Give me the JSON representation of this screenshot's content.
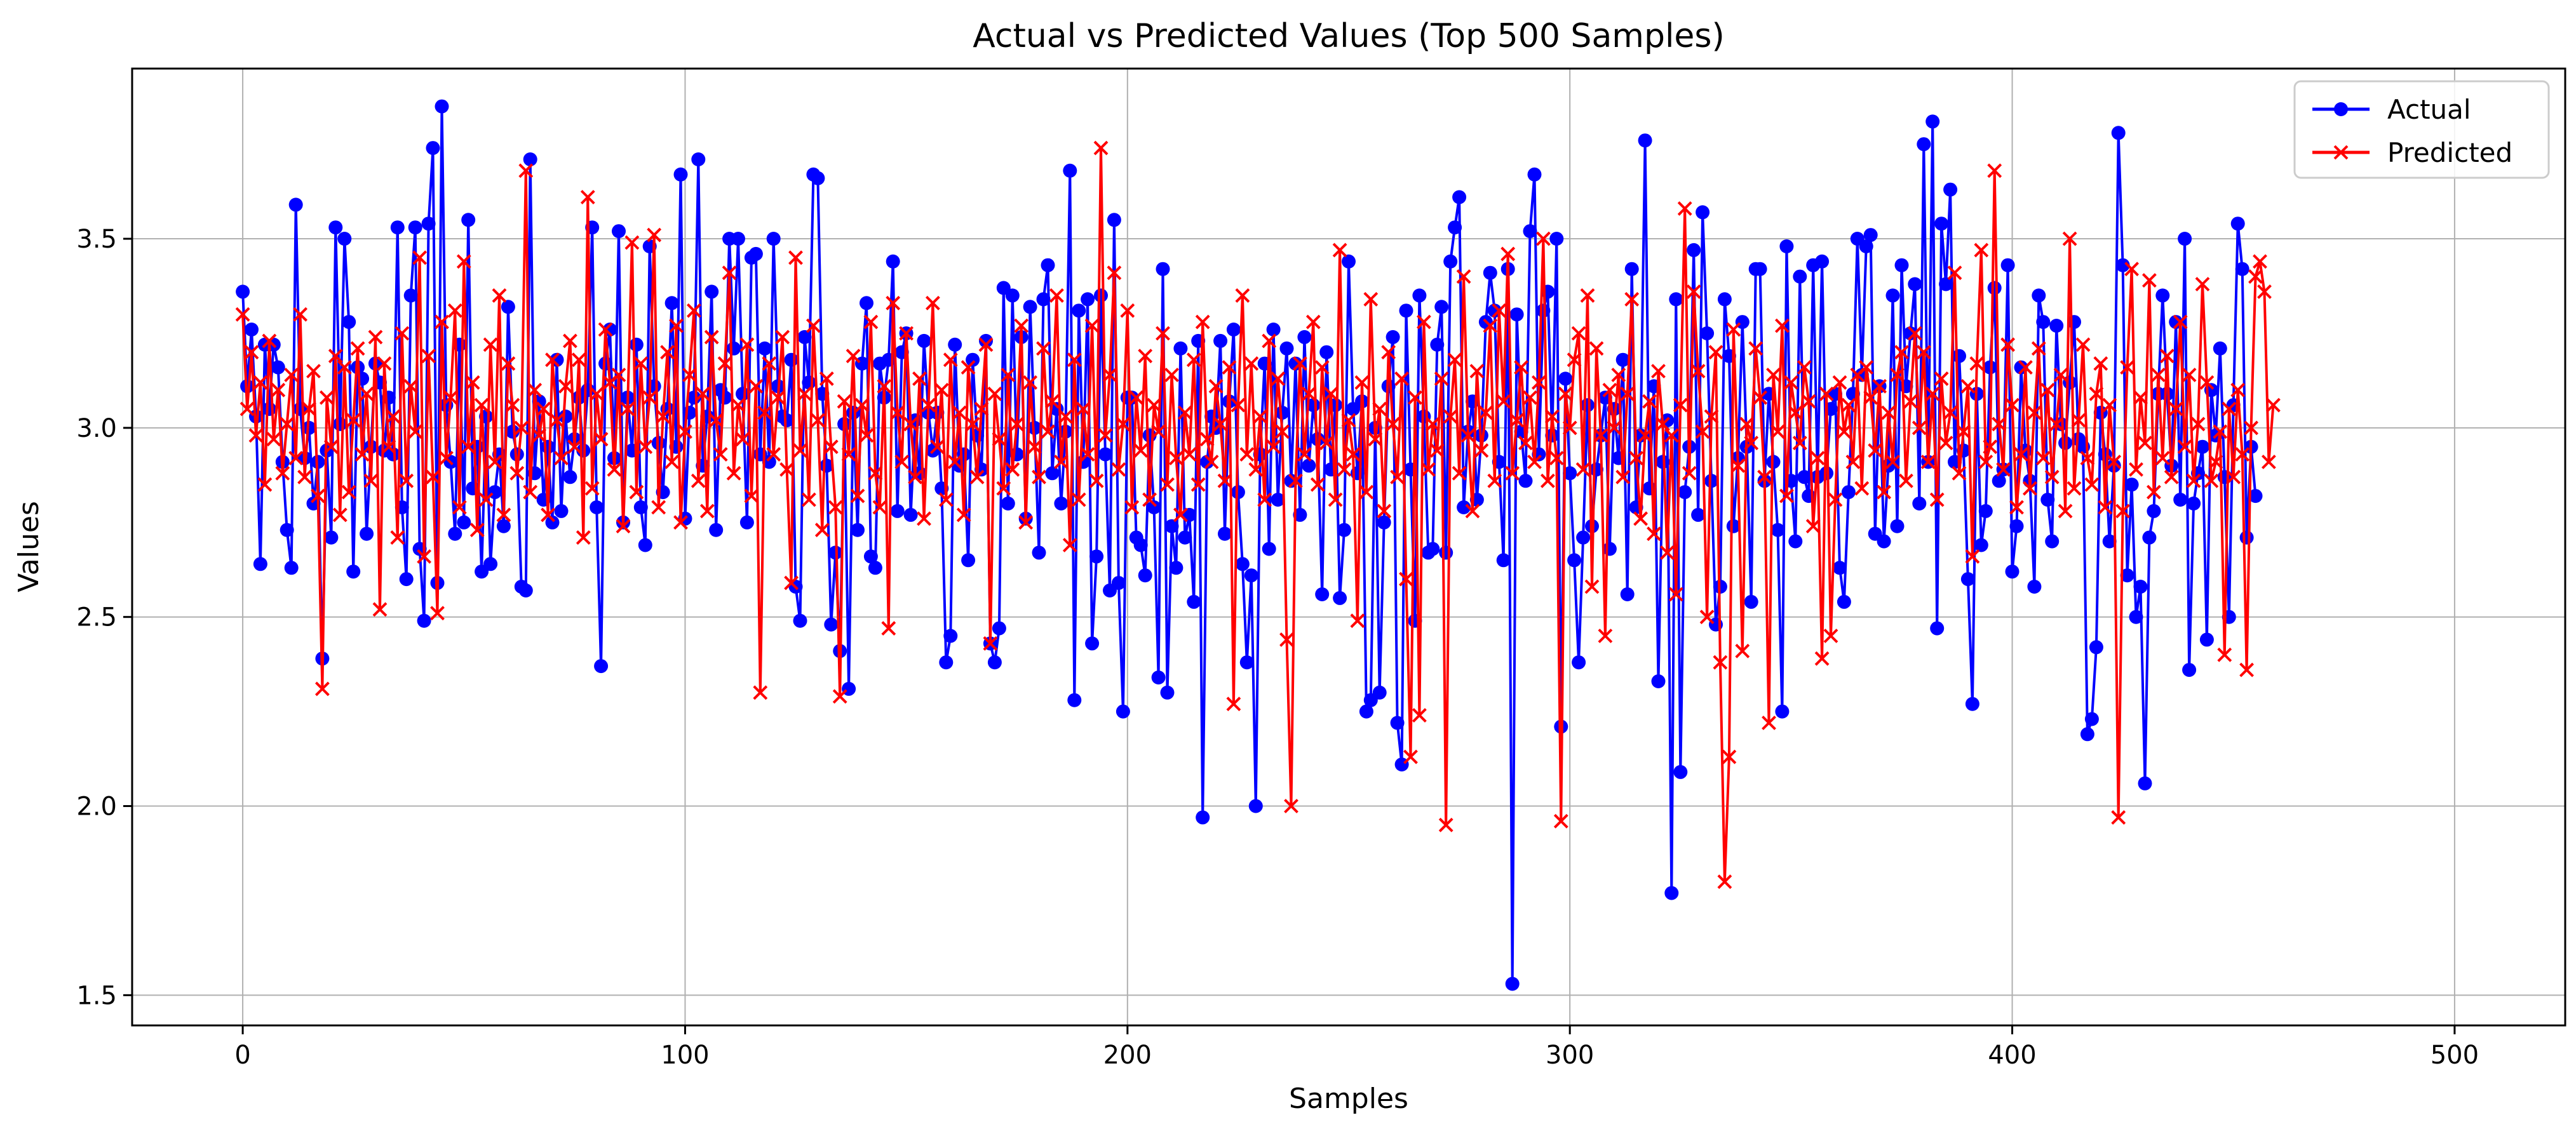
{
  "chart_data": {
    "type": "line",
    "title": "Actual vs Predicted Values (Top 500 Samples)",
    "xlabel": "Samples",
    "ylabel": "Values",
    "xlim": [
      -25,
      525
    ],
    "ylim": [
      1.42,
      3.95
    ],
    "xticks": [
      0,
      100,
      200,
      300,
      400,
      500
    ],
    "yticks": [
      1.5,
      2.0,
      2.5,
      3.0,
      3.5
    ],
    "xtick_labels": [
      "0",
      "100",
      "200",
      "300",
      "400",
      "500"
    ],
    "ytick_labels": [
      "1.5",
      "2.0",
      "2.5",
      "3.0",
      "3.5"
    ],
    "grid": true,
    "legend_position": "top-right",
    "series": [
      {
        "name": "Actual",
        "color": "#0000ff",
        "marker": "circle",
        "values": [
          3.36,
          3.11,
          3.26,
          3.03,
          2.64,
          3.22,
          3.05,
          3.22,
          3.16,
          2.91,
          2.73,
          2.63,
          3.59,
          3.05,
          2.92,
          3.0,
          2.8,
          2.91,
          2.39,
          2.94,
          2.71,
          3.53,
          3.01,
          3.5,
          3.28,
          2.62,
          3.16,
          3.13,
          2.72,
          2.95,
          3.17,
          3.12,
          2.94,
          3.08,
          2.93,
          3.53,
          2.79,
          2.6,
          3.35,
          3.53,
          2.68,
          2.49,
          3.54,
          3.74,
          2.59,
          3.85,
          3.06,
          2.91,
          2.72,
          3.22,
          2.75,
          3.55,
          2.84,
          2.95,
          2.62,
          3.03,
          2.64,
          2.83,
          2.93,
          2.74,
          3.32,
          2.99,
          2.93,
          2.58,
          2.57,
          3.71,
          2.88,
          3.07,
          2.81,
          2.95,
          2.75,
          3.18,
          2.78,
          3.03,
          2.87,
          2.97,
          3.08,
          2.94,
          3.1,
          3.53,
          2.79,
          2.37,
          3.17,
          3.26,
          2.92,
          3.52,
          2.75,
          3.08,
          2.94,
          3.22,
          2.79,
          2.69,
          3.48,
          3.11,
          2.96,
          2.83,
          3.05,
          3.33,
          2.95,
          3.67,
          2.76,
          3.04,
          3.08,
          3.71,
          2.9,
          3.03,
          3.36,
          2.73,
          3.1,
          3.08,
          3.5,
          3.21,
          3.5,
          3.09,
          2.75,
          3.45,
          3.46,
          2.93,
          3.21,
          2.91,
          3.5,
          3.11,
          3.03,
          3.02,
          3.18,
          2.58,
          2.49,
          3.24,
          3.12,
          3.67,
          3.66,
          3.09,
          2.9,
          2.48,
          2.67,
          2.41,
          3.01,
          2.31,
          3.04,
          2.73,
          3.17,
          3.33,
          2.66,
          2.63,
          3.17,
          3.08,
          3.18,
          3.44,
          2.78,
          3.2,
          3.25,
          2.77,
          3.02,
          2.88,
          3.23,
          3.04,
          2.94,
          3.04,
          2.84,
          2.38,
          2.45,
          3.22,
          2.9,
          2.93,
          2.65,
          3.18,
          2.98,
          2.89,
          3.23,
          2.43,
          2.38,
          2.47,
          3.37,
          2.8,
          3.35,
          2.93,
          3.24,
          2.76,
          3.32,
          3.0,
          2.67,
          3.34,
          3.43,
          2.88,
          3.05,
          2.8,
          2.99,
          3.68,
          2.28,
          3.31,
          2.91,
          3.34,
          2.43,
          2.66,
          3.35,
          2.93,
          2.57,
          3.55,
          2.59,
          2.25,
          3.08,
          3.08,
          2.71,
          2.69,
          2.61,
          2.98,
          2.79,
          2.34,
          3.42,
          2.3,
          2.74,
          2.63,
          3.21,
          2.71,
          2.77,
          2.54,
          3.23,
          1.97,
          2.91,
          3.03,
          3.0,
          3.23,
          2.72,
          3.07,
          3.26,
          2.83,
          2.64,
          2.38,
          2.61,
          2.0,
          2.93,
          3.17,
          2.68,
          3.26,
          2.81,
          3.04,
          3.21,
          2.86,
          3.17,
          2.77,
          3.24,
          2.9,
          3.06,
          2.97,
          2.56,
          3.2,
          2.89,
          3.06,
          2.55,
          2.73,
          3.44,
          3.05,
          2.88,
          3.07,
          2.25,
          2.28,
          3.0,
          2.3,
          2.75,
          3.11,
          3.24,
          2.22,
          2.11,
          3.31,
          2.89,
          2.49,
          3.35,
          3.03,
          2.67,
          2.68,
          3.22,
          3.32,
          2.67,
          3.44,
          3.53,
          3.61,
          2.79,
          2.99,
          3.07,
          2.81,
          2.98,
          3.28,
          3.41,
          3.31,
          2.91,
          2.65,
          3.42,
          1.53,
          3.3,
          2.99,
          2.86,
          3.52,
          3.67,
          2.93,
          3.31,
          3.36,
          2.98,
          3.5,
          2.21,
          3.13,
          2.88,
          2.65,
          2.38,
          2.71,
          3.06,
          2.74,
          2.89,
          2.98,
          3.08,
          2.68,
          3.05,
          2.92,
          3.18,
          2.56,
          3.42,
          2.79,
          2.98,
          3.76,
          2.84,
          3.11,
          2.33,
          2.91,
          3.02,
          1.77,
          3.34,
          2.09,
          2.83,
          2.95,
          3.47,
          2.77,
          3.57,
          3.25,
          2.86,
          2.48,
          2.58,
          3.34,
          3.19,
          2.74,
          2.92,
          3.28,
          2.95,
          2.54,
          3.42,
          3.42,
          2.86,
          3.09,
          2.91,
          2.73,
          2.25,
          3.48,
          2.86,
          2.7,
          3.4,
          2.87,
          2.82,
          3.43,
          2.87,
          3.44,
          2.88,
          3.05,
          3.09,
          2.63,
          2.54,
          2.83,
          3.09,
          3.5,
          3.14,
          3.48,
          3.51,
          2.72,
          3.11,
          2.7,
          2.9,
          3.35,
          2.74,
          3.43,
          3.11,
          3.25,
          3.38,
          2.8,
          3.75,
          2.91,
          3.81,
          2.47,
          3.54,
          3.38,
          3.63,
          2.91,
          3.19,
          2.94,
          2.6,
          2.27,
          3.09,
          2.69,
          2.78,
          3.16,
          3.37,
          2.86,
          2.89,
          3.43,
          2.62,
          2.74,
          3.16,
          2.94,
          2.86,
          2.58,
          3.35,
          3.28,
          2.81,
          2.7,
          3.27,
          3.01,
          2.96,
          3.12,
          3.28,
          2.97,
          2.95,
          2.19,
          2.23,
          2.42,
          3.04,
          2.93,
          2.7,
          2.9,
          3.78,
          3.43,
          2.61,
          2.85,
          2.5,
          2.58,
          2.06,
          2.71,
          2.78,
          3.09,
          3.35,
          3.09,
          2.9,
          3.28,
          2.81,
          3.5,
          2.36,
          2.8,
          2.88,
          2.95,
          2.44,
          3.1,
          2.98,
          3.21,
          2.87,
          2.5,
          3.06,
          3.54,
          3.42,
          2.71,
          2.95,
          2.82
        ]
      },
      {
        "name": "Predicted",
        "color": "#ff0000",
        "marker": "x",
        "values": [
          3.3,
          3.05,
          3.2,
          2.98,
          3.12,
          2.85,
          3.23,
          2.97,
          3.1,
          2.88,
          3.01,
          3.14,
          2.92,
          3.3,
          2.87,
          3.05,
          3.15,
          2.82,
          2.31,
          3.08,
          2.95,
          3.19,
          2.77,
          3.16,
          2.83,
          3.02,
          3.21,
          2.93,
          3.09,
          2.86,
          3.24,
          2.52,
          3.17,
          2.95,
          3.03,
          2.71,
          3.25,
          2.86,
          3.11,
          2.99,
          3.45,
          2.66,
          3.19,
          2.87,
          2.51,
          3.28,
          2.92,
          3.08,
          3.31,
          2.79,
          3.44,
          2.95,
          3.12,
          2.73,
          3.06,
          2.81,
          3.22,
          2.91,
          3.35,
          2.77,
          3.17,
          3.06,
          2.88,
          3.0,
          3.68,
          2.83,
          3.1,
          2.98,
          3.05,
          2.77,
          3.18,
          3.02,
          2.92,
          3.11,
          3.23,
          2.95,
          3.18,
          2.71,
          3.61,
          2.84,
          3.09,
          2.97,
          3.26,
          3.12,
          2.89,
          3.14,
          2.74,
          3.05,
          3.49,
          2.83,
          3.17,
          2.95,
          3.08,
          3.51,
          2.79,
          3.03,
          3.2,
          2.91,
          3.27,
          2.75,
          2.99,
          3.14,
          3.31,
          2.86,
          3.09,
          2.78,
          3.24,
          3.02,
          2.93,
          3.17,
          3.41,
          2.88,
          3.06,
          2.97,
          3.22,
          2.82,
          3.11,
          2.3,
          3.04,
          3.17,
          2.93,
          3.08,
          3.24,
          2.89,
          2.59,
          3.45,
          2.94,
          3.09,
          2.81,
          3.27,
          3.02,
          2.73,
          3.13,
          2.95,
          2.79,
          2.29,
          3.07,
          2.93,
          3.19,
          2.82,
          3.06,
          2.98,
          3.28,
          2.88,
          2.79,
          3.11,
          2.47,
          3.33,
          3.04,
          2.91,
          3.25,
          3.01,
          2.87,
          3.13,
          2.76,
          3.06,
          3.33,
          2.95,
          3.1,
          2.81,
          3.18,
          2.91,
          3.04,
          2.77,
          3.16,
          3.01,
          2.87,
          3.05,
          3.22,
          2.43,
          3.09,
          2.97,
          2.84,
          3.14,
          2.89,
          3.01,
          3.27,
          2.75,
          3.12,
          2.95,
          2.87,
          3.21,
          2.99,
          3.07,
          3.35,
          2.91,
          3.03,
          2.69,
          3.18,
          2.81,
          3.05,
          2.93,
          3.27,
          2.86,
          3.74,
          2.98,
          3.14,
          3.41,
          2.89,
          3.01,
          3.31,
          2.79,
          3.08,
          2.94,
          3.19,
          2.81,
          3.06,
          2.99,
          3.25,
          2.85,
          3.14,
          2.92,
          2.77,
          3.04,
          2.93,
          3.18,
          2.85,
          3.28,
          2.97,
          2.91,
          3.11,
          3.01,
          2.86,
          3.16,
          2.27,
          3.06,
          3.35,
          2.93,
          3.17,
          2.89,
          3.03,
          2.81,
          3.23,
          2.95,
          3.13,
          2.99,
          2.44,
          2.0,
          2.86,
          3.17,
          2.93,
          3.09,
          3.28,
          2.85,
          3.16,
          2.96,
          3.09,
          2.81,
          3.47,
          2.89,
          3.02,
          2.93,
          2.49,
          3.12,
          2.83,
          3.34,
          2.97,
          3.05,
          2.78,
          3.2,
          3.01,
          2.87,
          3.13,
          2.6,
          2.13,
          3.08,
          2.24,
          3.28,
          2.89,
          3.01,
          2.94,
          3.13,
          1.95,
          3.03,
          3.18,
          2.88,
          3.4,
          2.98,
          2.78,
          3.15,
          2.94,
          3.04,
          3.27,
          2.86,
          3.31,
          3.07,
          3.46,
          2.88,
          3.02,
          3.16,
          2.96,
          3.08,
          2.91,
          3.12,
          3.5,
          2.86,
          3.03,
          2.92,
          1.96,
          3.09,
          3.0,
          3.18,
          3.25,
          2.89,
          3.35,
          2.58,
          3.21,
          2.98,
          2.45,
          3.1,
          3.0,
          3.14,
          2.87,
          3.09,
          3.34,
          2.92,
          2.76,
          2.98,
          3.07,
          2.72,
          3.15,
          3.01,
          2.67,
          2.98,
          2.56,
          3.06,
          3.58,
          2.88,
          3.36,
          3.15,
          2.99,
          2.5,
          3.03,
          3.2,
          2.38,
          1.8,
          2.13,
          3.26,
          2.9,
          2.41,
          3.01,
          2.96,
          3.21,
          3.08,
          2.87,
          2.22,
          3.14,
          2.99,
          3.27,
          2.82,
          3.12,
          3.04,
          2.96,
          3.16,
          3.07,
          2.74,
          2.92,
          2.39,
          3.09,
          2.45,
          2.81,
          3.12,
          2.99,
          3.06,
          2.91,
          3.14,
          2.84,
          3.16,
          3.08,
          2.94,
          3.11,
          2.83,
          3.04,
          2.91,
          3.14,
          3.2,
          2.86,
          3.07,
          3.25,
          3.0,
          3.2,
          2.91,
          3.09,
          2.81,
          3.13,
          2.96,
          3.04,
          3.41,
          2.88,
          2.99,
          3.11,
          2.66,
          3.17,
          3.47,
          2.91,
          2.95,
          3.68,
          3.01,
          2.89,
          3.22,
          3.06,
          2.79,
          2.93,
          3.16,
          2.84,
          3.04,
          3.21,
          2.92,
          3.1,
          2.87,
          3.01,
          3.14,
          2.78,
          3.5,
          2.84,
          3.02,
          3.22,
          2.92,
          2.85,
          3.09,
          3.17,
          2.79,
          3.06,
          2.91,
          1.97,
          2.78,
          3.16,
          3.42,
          2.89,
          3.08,
          2.96,
          3.39,
          2.83,
          3.14,
          2.92,
          3.19,
          2.87,
          3.05,
          3.28,
          2.95,
          3.14,
          2.86,
          3.01,
          3.38,
          3.12,
          2.86,
          2.91,
          2.99,
          2.4,
          3.05,
          2.87,
          3.1,
          2.93,
          2.36,
          3.0,
          3.4,
          3.44,
          3.36,
          2.91,
          3.06
        ]
      }
    ]
  }
}
